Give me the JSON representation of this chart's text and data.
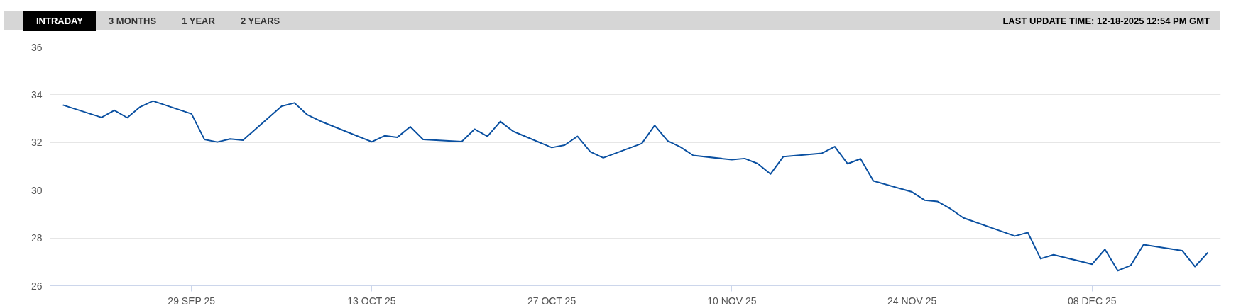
{
  "chart_data": {
    "type": "line",
    "annotations": [
      "INTRADAY",
      "3 MONTHS",
      "1 YEAR",
      "2 YEARS",
      "LAST UPDATE TIME: 12-18-2025 12:54 PM GMT"
    ],
    "x": [
      "2025-09-19",
      "2025-09-22",
      "2025-09-23",
      "2025-09-24",
      "2025-09-25",
      "2025-09-26",
      "2025-09-29",
      "2025-09-30",
      "2025-10-01",
      "2025-10-02",
      "2025-10-03",
      "2025-10-06",
      "2025-10-07",
      "2025-10-08",
      "2025-10-09",
      "2025-10-13",
      "2025-10-14",
      "2025-10-15",
      "2025-10-16",
      "2025-10-17",
      "2025-10-20",
      "2025-10-21",
      "2025-10-22",
      "2025-10-23",
      "2025-10-24",
      "2025-10-27",
      "2025-10-28",
      "2025-10-29",
      "2025-10-30",
      "2025-10-31",
      "2025-11-03",
      "2025-11-04",
      "2025-11-05",
      "2025-11-06",
      "2025-11-07",
      "2025-11-10",
      "2025-11-11",
      "2025-11-12",
      "2025-11-13",
      "2025-11-14",
      "2025-11-17",
      "2025-11-18",
      "2025-11-19",
      "2025-11-20",
      "2025-11-21",
      "2025-11-24",
      "2025-11-25",
      "2025-11-26",
      "2025-11-27",
      "2025-11-28",
      "2025-12-02",
      "2025-12-03",
      "2025-12-04",
      "2025-12-05",
      "2025-12-08",
      "2025-12-09",
      "2025-12-10",
      "2025-12-11",
      "2025-12-12",
      "2025-12-15",
      "2025-12-16",
      "2025-12-17"
    ],
    "series": [
      {
        "color": "#0a50a1",
        "values": [
          33.57,
          33.05,
          33.35,
          33.04,
          33.49,
          33.74,
          33.2,
          32.13,
          32.02,
          32.15,
          32.1,
          33.52,
          33.66,
          33.16,
          32.9,
          32.03,
          32.28,
          32.22,
          32.66,
          32.13,
          32.04,
          32.56,
          32.26,
          32.88,
          32.47,
          31.79,
          31.89,
          32.26,
          31.61,
          31.36,
          31.96,
          32.72,
          32.07,
          31.81,
          31.46,
          31.28,
          31.33,
          31.12,
          30.68,
          31.41,
          31.55,
          31.83,
          31.11,
          31.32,
          30.39,
          29.93,
          29.58,
          29.53,
          29.22,
          28.84,
          28.08,
          28.23,
          27.13,
          27.3,
          26.9,
          27.52,
          26.63,
          26.85,
          27.72,
          27.47,
          26.8,
          27.39
        ]
      }
    ],
    "xlim": [
      "2025-09-18",
      "2025-12-18"
    ],
    "xticks": [
      {
        "value": "2025-09-29",
        "label": "29 SEP 25"
      },
      {
        "value": "2025-10-13",
        "label": "13 OCT 25"
      },
      {
        "value": "2025-10-27",
        "label": "27 OCT 25"
      },
      {
        "value": "2025-11-10",
        "label": "10 NOV 25"
      },
      {
        "value": "2025-11-24",
        "label": "24 NOV 25"
      },
      {
        "value": "2025-12-08",
        "label": "08 DEC 25"
      }
    ],
    "ylim": [
      26,
      36
    ],
    "yticks": [
      26,
      28,
      30,
      32,
      34,
      36
    ],
    "grid": "y",
    "marker": "none",
    "line_style": "solid"
  }
}
